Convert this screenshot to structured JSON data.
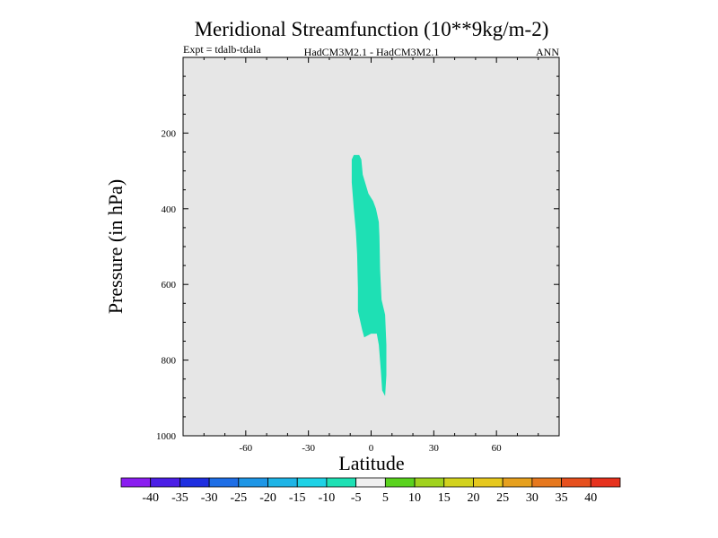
{
  "chart_data": {
    "type": "contour",
    "title": "Meridional Streamfunction (10**9kg/m-2)",
    "subtitle_left": "Expt = tdalb-tdala",
    "subtitle_center": "HadCM3M2.1 - HadCM3M2.1",
    "subtitle_right": "ANN",
    "xlabel": "Latitude",
    "ylabel": "Pressure (in hPa)",
    "xlim": [
      -90,
      90
    ],
    "ylim": [
      1000,
      0
    ],
    "xticks": [
      -60,
      -30,
      0,
      30,
      60
    ],
    "yticks": [
      200,
      400,
      600,
      800,
      1000
    ],
    "xtick_labels": [
      "-60",
      "-30",
      "0",
      "30",
      "60"
    ],
    "ytick_labels": [
      "200",
      "400",
      "600",
      "800",
      "1000"
    ],
    "background_color": "#e6e6e6",
    "shaded_regions": [
      {
        "level_range": [
          -10,
          -5
        ],
        "color": "#1ee0b4",
        "outline": [
          [
            -9.3,
            270
          ],
          [
            -8.3,
            258
          ],
          [
            -5.7,
            258
          ],
          [
            -4.7,
            270
          ],
          [
            -4.0,
            310
          ],
          [
            -1.3,
            360
          ],
          [
            1.0,
            380
          ],
          [
            2.3,
            400
          ],
          [
            3.7,
            435
          ],
          [
            4.0,
            475
          ],
          [
            4.3,
            560
          ],
          [
            5.0,
            640
          ],
          [
            6.7,
            680
          ],
          [
            7.3,
            760
          ],
          [
            7.3,
            840
          ],
          [
            6.7,
            895
          ],
          [
            5.3,
            880
          ],
          [
            4.7,
            830
          ],
          [
            3.7,
            760
          ],
          [
            2.7,
            730
          ],
          [
            0,
            730
          ],
          [
            -3.3,
            740
          ],
          [
            -4.3,
            720
          ],
          [
            -6.3,
            670
          ],
          [
            -6.3,
            610
          ],
          [
            -6.7,
            520
          ],
          [
            -7.3,
            460
          ],
          [
            -8.3,
            400
          ],
          [
            -9.3,
            330
          ]
        ]
      }
    ],
    "colorbar": {
      "labels": [
        "-40",
        "-35",
        "-30",
        "-25",
        "-20",
        "-15",
        "-10",
        "-5",
        "5",
        "10",
        "15",
        "20",
        "25",
        "30",
        "35",
        "40"
      ],
      "colors": [
        "#8a1ef0",
        "#4b1ee6",
        "#1e2ee0",
        "#1e6ee6",
        "#1e96e6",
        "#1eb4e6",
        "#1ed2e6",
        "#1ee0b4",
        "#f0f0f0",
        "#5ad21e",
        "#a0d21e",
        "#d2d21e",
        "#e6c81e",
        "#e6a01e",
        "#e6781e",
        "#e6501e",
        "#e6321e"
      ]
    }
  }
}
